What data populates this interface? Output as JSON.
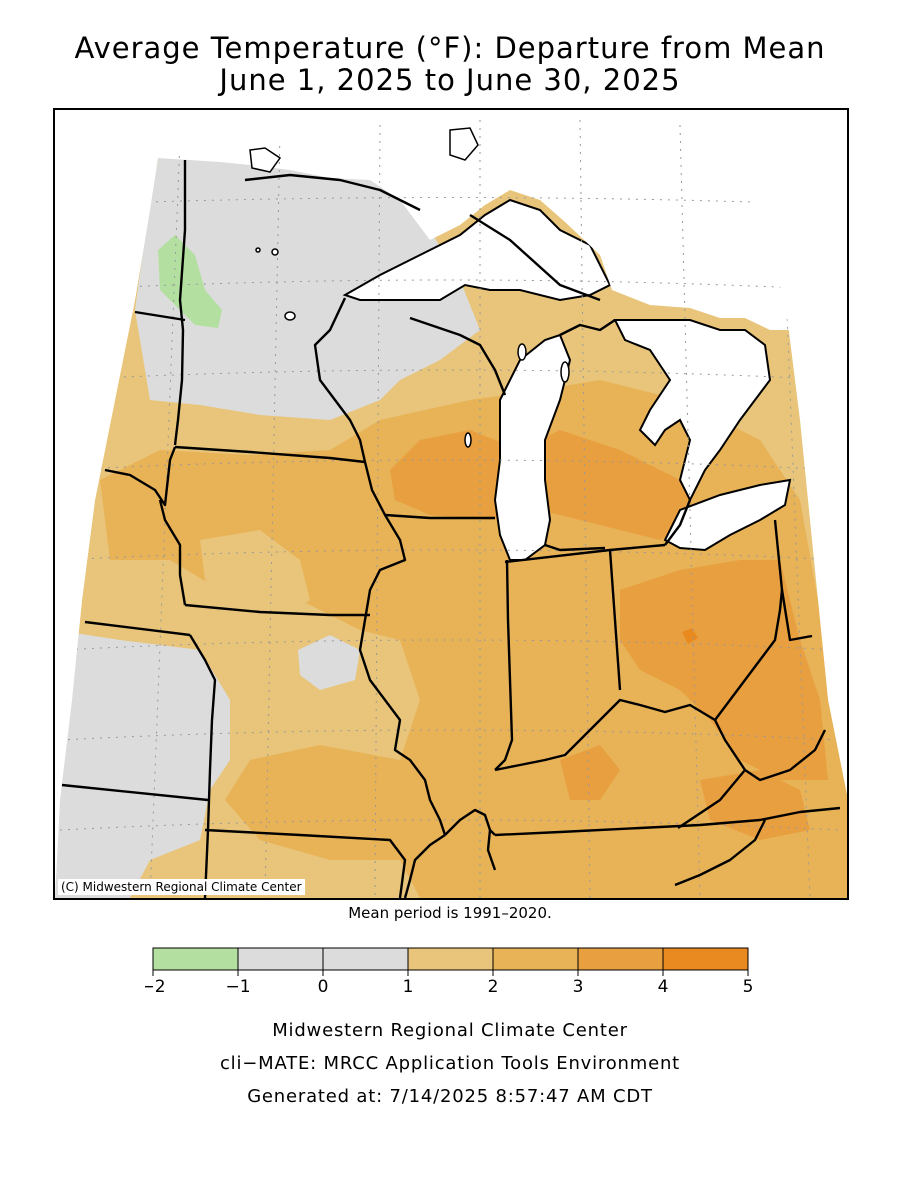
{
  "title_line1": "Average Temperature (°F): Departure from Mean",
  "title_line2": "June 1, 2025 to June 30, 2025",
  "copyright": "(C) Midwestern Regional Climate Center",
  "mean_period": "Mean period is 1991–2020.",
  "legend": {
    "bins": [
      {
        "from": -2,
        "to": -1,
        "color": "#b3e0a0"
      },
      {
        "from": -1,
        "to": 0,
        "color": "#dcdcdc"
      },
      {
        "from": 0,
        "to": 1,
        "color": "#dcdcdc"
      },
      {
        "from": 1,
        "to": 2,
        "color": "#e8c57a"
      },
      {
        "from": 2,
        "to": 3,
        "color": "#e8b257"
      },
      {
        "from": 3,
        "to": 4,
        "color": "#e89f3f"
      },
      {
        "from": 4,
        "to": 5,
        "color": "#e88a1f"
      }
    ],
    "tick_labels": [
      "−2",
      "−1",
      "0",
      "1",
      "2",
      "3",
      "4",
      "5"
    ]
  },
  "colors": {
    "green": "#b3e0a0",
    "gray": "#dcdcdc",
    "c1_2": "#e8c57a",
    "c2_3": "#e8b257",
    "c3_4": "#e89f3f",
    "c4_5": "#e88a1f",
    "water": "#ffffff"
  },
  "footer": {
    "line1": "Midwestern Regional Climate Center",
    "line2": "cli−MATE: MRCC Application Tools Environment",
    "line3": "Generated at: 7/14/2025 8:57:47 AM CDT"
  }
}
